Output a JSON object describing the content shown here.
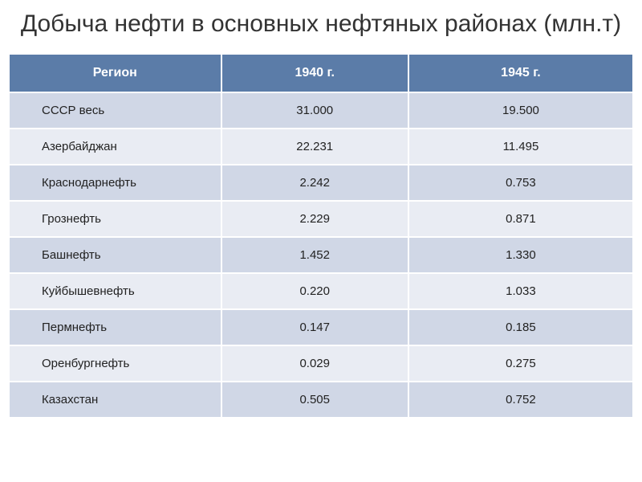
{
  "title": "Добыча нефти в основных нефтяных районах (млн.т)",
  "table": {
    "type": "table",
    "header_bg": "#5b7ca8",
    "header_color": "#ffffff",
    "row_odd_bg": "#d0d7e6",
    "row_even_bg": "#e9ecf3",
    "border_color": "#ffffff",
    "text_color": "#222222",
    "title_fontsize": 30,
    "header_fontsize": 16,
    "cell_fontsize": 15,
    "columns": [
      {
        "key": "region",
        "label": "Регион",
        "width": "34%",
        "align": "left"
      },
      {
        "key": "y1940",
        "label": "1940 г.",
        "width": "30%",
        "align": "center"
      },
      {
        "key": "y1945",
        "label": "1945 г.",
        "width": "36%",
        "align": "center"
      }
    ],
    "rows": [
      {
        "region": "СССР весь",
        "y1940": "31.000",
        "y1945": "19.500"
      },
      {
        "region": "Азербайджан",
        "y1940": "22.231",
        "y1945": "11.495"
      },
      {
        "region": "Краснодарнефть",
        "y1940": "2.242",
        "y1945": "0.753"
      },
      {
        "region": "Грознефть",
        "y1940": "2.229",
        "y1945": "0.871"
      },
      {
        "region": "Башнефть",
        "y1940": "1.452",
        "y1945": "1.330"
      },
      {
        "region": "Куйбышевнефть",
        "y1940": "0.220",
        "y1945": "1.033"
      },
      {
        "region": "Пермнефть",
        "y1940": "0.147",
        "y1945": "0.185"
      },
      {
        "region": "Оренбургнефть",
        "y1940": "0.029",
        "y1945": "0.275"
      },
      {
        "region": "Казахстан",
        "y1940": "0.505",
        "y1945": "0.752"
      }
    ]
  }
}
